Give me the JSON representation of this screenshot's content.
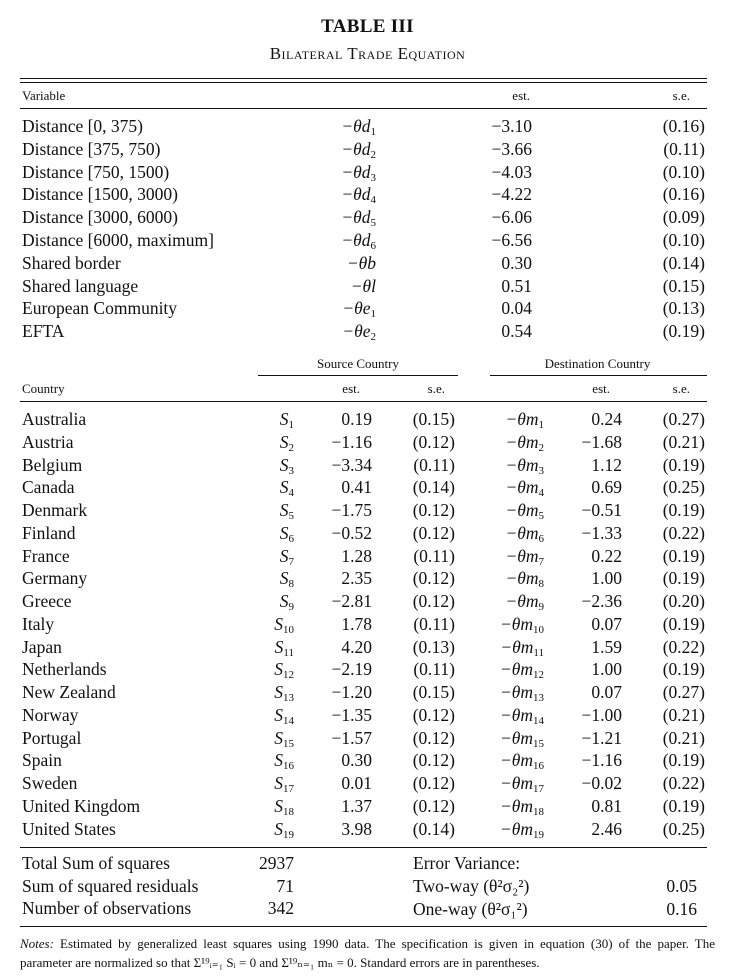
{
  "title": "TABLE III",
  "subtitle": "Bilateral Trade Equation",
  "top_header": {
    "variable": "Variable",
    "est": "est.",
    "se": "s.e."
  },
  "variables": [
    {
      "name": "Distance [0, 375)",
      "sym": "−θd",
      "sub": "1",
      "est": "−3.10",
      "se": "(0.16)"
    },
    {
      "name": "Distance [375, 750)",
      "sym": "−θd",
      "sub": "2",
      "est": "−3.66",
      "se": "(0.11)"
    },
    {
      "name": "Distance [750, 1500)",
      "sym": "−θd",
      "sub": "3",
      "est": "−4.03",
      "se": "(0.10)"
    },
    {
      "name": "Distance [1500, 3000)",
      "sym": "−θd",
      "sub": "4",
      "est": "−4.22",
      "se": "(0.16)"
    },
    {
      "name": "Distance [3000, 6000)",
      "sym": "−θd",
      "sub": "5",
      "est": "−6.06",
      "se": "(0.09)"
    },
    {
      "name": "Distance [6000, maximum]",
      "sym": "−θd",
      "sub": "6",
      "est": "−6.56",
      "se": "(0.10)"
    },
    {
      "name": "Shared border",
      "sym": "−θb",
      "sub": "",
      "est": "0.30",
      "se": "(0.14)"
    },
    {
      "name": "Shared language",
      "sym": "−θl",
      "sub": "",
      "est": "0.51",
      "se": "(0.15)"
    },
    {
      "name": "European Community",
      "sym": "−θe",
      "sub": "1",
      "est": "0.04",
      "se": "(0.13)"
    },
    {
      "name": "EFTA",
      "sym": "−θe",
      "sub": "2",
      "est": "0.54",
      "se": "(0.19)"
    }
  ],
  "country_header": {
    "source": "Source Country",
    "destination": "Destination Country",
    "country": "Country",
    "est": "est.",
    "se": "s.e."
  },
  "countries": [
    {
      "name": "Australia",
      "s": "S",
      "sn": "1",
      "s_est": "0.19",
      "s_se": "(0.15)",
      "m": "−θm",
      "mn": "1",
      "m_est": "0.24",
      "m_se": "(0.27)"
    },
    {
      "name": "Austria",
      "s": "S",
      "sn": "2",
      "s_est": "−1.16",
      "s_se": "(0.12)",
      "m": "−θm",
      "mn": "2",
      "m_est": "−1.68",
      "m_se": "(0.21)"
    },
    {
      "name": "Belgium",
      "s": "S",
      "sn": "3",
      "s_est": "−3.34",
      "s_se": "(0.11)",
      "m": "−θm",
      "mn": "3",
      "m_est": "1.12",
      "m_se": "(0.19)"
    },
    {
      "name": "Canada",
      "s": "S",
      "sn": "4",
      "s_est": "0.41",
      "s_se": "(0.14)",
      "m": "−θm",
      "mn": "4",
      "m_est": "0.69",
      "m_se": "(0.25)"
    },
    {
      "name": "Denmark",
      "s": "S",
      "sn": "5",
      "s_est": "−1.75",
      "s_se": "(0.12)",
      "m": "−θm",
      "mn": "5",
      "m_est": "−0.51",
      "m_se": "(0.19)"
    },
    {
      "name": "Finland",
      "s": "S",
      "sn": "6",
      "s_est": "−0.52",
      "s_se": "(0.12)",
      "m": "−θm",
      "mn": "6",
      "m_est": "−1.33",
      "m_se": "(0.22)"
    },
    {
      "name": "France",
      "s": "S",
      "sn": "7",
      "s_est": "1.28",
      "s_se": "(0.11)",
      "m": "−θm",
      "mn": "7",
      "m_est": "0.22",
      "m_se": "(0.19)"
    },
    {
      "name": "Germany",
      "s": "S",
      "sn": "8",
      "s_est": "2.35",
      "s_se": "(0.12)",
      "m": "−θm",
      "mn": "8",
      "m_est": "1.00",
      "m_se": "(0.19)"
    },
    {
      "name": "Greece",
      "s": "S",
      "sn": "9",
      "s_est": "−2.81",
      "s_se": "(0.12)",
      "m": "−θm",
      "mn": "9",
      "m_est": "−2.36",
      "m_se": "(0.20)"
    },
    {
      "name": "Italy",
      "s": "S",
      "sn": "10",
      "s_est": "1.78",
      "s_se": "(0.11)",
      "m": "−θm",
      "mn": "10",
      "m_est": "0.07",
      "m_se": "(0.19)"
    },
    {
      "name": "Japan",
      "s": "S",
      "sn": "11",
      "s_est": "4.20",
      "s_se": "(0.13)",
      "m": "−θm",
      "mn": "11",
      "m_est": "1.59",
      "m_se": "(0.22)"
    },
    {
      "name": "Netherlands",
      "s": "S",
      "sn": "12",
      "s_est": "−2.19",
      "s_se": "(0.11)",
      "m": "−θm",
      "mn": "12",
      "m_est": "1.00",
      "m_se": "(0.19)"
    },
    {
      "name": "New Zealand",
      "s": "S",
      "sn": "13",
      "s_est": "−1.20",
      "s_se": "(0.15)",
      "m": "−θm",
      "mn": "13",
      "m_est": "0.07",
      "m_se": "(0.27)"
    },
    {
      "name": "Norway",
      "s": "S",
      "sn": "14",
      "s_est": "−1.35",
      "s_se": "(0.12)",
      "m": "−θm",
      "mn": "14",
      "m_est": "−1.00",
      "m_se": "(0.21)"
    },
    {
      "name": "Portugal",
      "s": "S",
      "sn": "15",
      "s_est": "−1.57",
      "s_se": "(0.12)",
      "m": "−θm",
      "mn": "15",
      "m_est": "−1.21",
      "m_se": "(0.21)"
    },
    {
      "name": "Spain",
      "s": "S",
      "sn": "16",
      "s_est": "0.30",
      "s_se": "(0.12)",
      "m": "−θm",
      "mn": "16",
      "m_est": "−1.16",
      "m_se": "(0.19)"
    },
    {
      "name": "Sweden",
      "s": "S",
      "sn": "17",
      "s_est": "0.01",
      "s_se": "(0.12)",
      "m": "−θm",
      "mn": "17",
      "m_est": "−0.02",
      "m_se": "(0.22)"
    },
    {
      "name": "United Kingdom",
      "s": "S",
      "sn": "18",
      "s_est": "1.37",
      "s_se": "(0.12)",
      "m": "−θm",
      "mn": "18",
      "m_est": "0.81",
      "m_se": "(0.19)"
    },
    {
      "name": "United States",
      "s": "S",
      "sn": "19",
      "s_est": "3.98",
      "s_se": "(0.14)",
      "m": "−θm",
      "mn": "19",
      "m_est": "2.46",
      "m_se": "(0.25)"
    }
  ],
  "summary": {
    "left": [
      {
        "label": "Total Sum of squares",
        "value": "2937"
      },
      {
        "label": "Sum of squared residuals",
        "value": "71"
      },
      {
        "label": "Number of observations",
        "value": "342"
      }
    ],
    "error_variance_title": "Error Variance:",
    "right": [
      {
        "label": "Two-way (θ²σ₂²)",
        "value": "0.05"
      },
      {
        "label": "One-way (θ²σ₁²)",
        "value": "0.16"
      }
    ]
  },
  "notes": {
    "label": "Notes:",
    "text": "Estimated by generalized least squares using 1990 data. The specification is given in equation (30) of the paper. The parameter are normalized so that Σ¹⁹ᵢ₌₁ Sᵢ = 0 and Σ¹⁹ₙ₌₁ mₙ = 0. Standard errors are in parentheses."
  }
}
